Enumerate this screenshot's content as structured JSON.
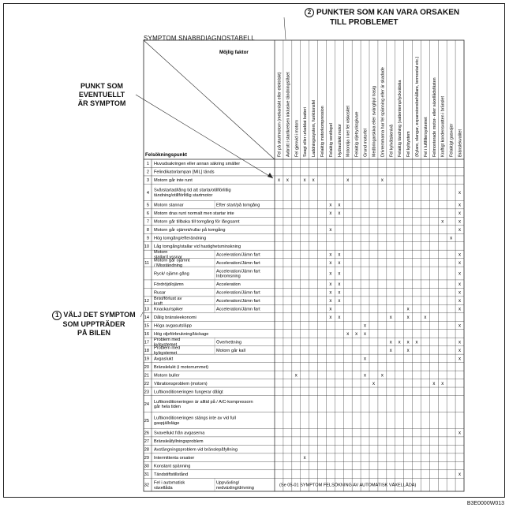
{
  "header": {
    "circle2": "2",
    "title_line1": "PUNKTER SOM KAN VARA ORSAKEN",
    "title_line2": "TILL PROBLEMET"
  },
  "table_title": "SYMPTOM SNABBDIAGNOSTABELL",
  "possible_factor": "Möjlig faktor",
  "trouble_point": "Felsökningspunkt",
  "left_label_top": [
    "PUNKT SOM",
    "EVENTUELLT",
    "ÄR SYMPTOM"
  ],
  "left_label_bottom": {
    "circle1": "1",
    "lines": [
      "VÄLJ DET SYMPTOM",
      "SOM UPPTRÄDER",
      "PÅ BILEN"
    ]
  },
  "columns": [
    "Fel på startmotorn (mekaniskt eller elektriskt)",
    "Avbrott i startkretsen inklusive tändningslåset",
    "Fel gjenvid i motorn",
    "Svagt eller urladdat batteri",
    "Laddningssystem, funktionsfel",
    "Felaktig motorkompression",
    "Felaktig ventilspel",
    "Hydrauliskt motor",
    "Motorolja i ner fel viskositet",
    "Felaktig oljetrycksgivare",
    "Grund motorfel",
    "Medbringarskiva eller svänghjul trasig",
    "Drivremmarna har fel spänning eller är skadade",
    "Fel kylvätskenivå",
    "Felaktig tändning (vattentemp/lyckvätska",
    "Fel kylsystem",
    "(Kylare, slangar, expansionsbehållare, termostat etc.)",
    "Fel i luftfiltersystemet",
    "Felmonterade motor- eller växellådsfästen",
    "Kraftigt kondensvatten i bränslet",
    "Felaktigt gasvajer",
    "Bränslekvalitet"
  ],
  "rows": [
    {
      "num": "1",
      "text": "Huvudsakringen eller annan säkring smälter",
      "marks": []
    },
    {
      "num": "2",
      "text": "Felindikatorlampan [MIL] tänds",
      "marks": []
    },
    {
      "num": "3",
      "text": "Motorn går inte runt",
      "marks": [
        0,
        1,
        3,
        4,
        8,
        12
      ]
    },
    {
      "num": "4",
      "text": "Svårstartad/lång tid att starta/otillförlitlig tändning/otillförlitlig startmotor",
      "marks": [
        21
      ]
    },
    {
      "num": "5",
      "text": "Motorn stannar",
      "sub": "Efter start/på tomgång",
      "marks": [
        6,
        7,
        21
      ]
    },
    {
      "num": "6",
      "text": "Motorn dras runt normalt men startar inte",
      "marks": [
        6,
        7,
        21
      ]
    },
    {
      "num": "7",
      "text": "Motorn går tillbaka till tomgång för långsamt",
      "marks": [
        19,
        21
      ]
    },
    {
      "num": "8",
      "text": "Motorn går ojämnt/rullar på tomgång",
      "marks": [
        6,
        21
      ]
    },
    {
      "num": "9",
      "text": "Hög tomgång/efterändning",
      "marks": [
        20
      ]
    },
    {
      "num": "10",
      "text": "Låg tomgång/stallar vid hastighetsminskning",
      "marks": []
    },
    {
      "num": "",
      "text": "Motorn stallar/Lyssnar",
      "sub": "Acceleration/Jämn fart",
      "marks": [
        6,
        7,
        21
      ]
    },
    {
      "num": "11",
      "text": "Motorn går ojämnt / Misständning",
      "sub": "Acceleration/Jämn fart",
      "marks": [
        6,
        7,
        21
      ]
    },
    {
      "num": "",
      "text": "Ryck/ ojämn gång",
      "sub": "Acceleration/Jämn fart Inbromsning",
      "marks": [
        6,
        7,
        21
      ]
    },
    {
      "num": "",
      "text": "Fördröjd/ojämn",
      "sub": "Acceleration",
      "marks": [
        6,
        7,
        21
      ]
    },
    {
      "num": "",
      "text": "Rusar",
      "sub": "Acceleration/Jämn fart",
      "marks": [
        6,
        7,
        21
      ]
    },
    {
      "num": "12",
      "text": "Brist/förlust av kraft",
      "sub": "Acceleration/Jämn fart",
      "marks": [
        6,
        7,
        21
      ]
    },
    {
      "num": "13",
      "text": "Knackar/spiker",
      "sub": "Acceleration/Jämn fart",
      "marks": [
        6,
        15,
        21
      ]
    },
    {
      "num": "14",
      "text": "Dålig bränsleekonomi",
      "marks": [
        6,
        7,
        13,
        15,
        17
      ]
    },
    {
      "num": "15",
      "text": "Höga avgasutsläpp",
      "marks": [
        10,
        21
      ]
    },
    {
      "num": "16",
      "text": "Hög oljeförbrukning/läckage",
      "marks": [
        8,
        9,
        10
      ]
    },
    {
      "num": "17",
      "text": "Problem med kylsystemet",
      "sub": "Överhettning",
      "marks": [
        13,
        14,
        15,
        16,
        21
      ]
    },
    {
      "num": "18",
      "text": "Problem med kylsystemet",
      "sub": "Motorn går kall",
      "marks": [
        13,
        15,
        21
      ]
    },
    {
      "num": "19",
      "text": "Avgaslukt",
      "marks": [
        10,
        21
      ]
    },
    {
      "num": "20",
      "text": "Bränslelukt (i motorrummet)",
      "marks": []
    },
    {
      "num": "21",
      "text": "Motorn buller",
      "marks": [
        2,
        10,
        12
      ]
    },
    {
      "num": "22",
      "text": "Vibrationsproblem (motorn)",
      "marks": [
        11,
        18,
        19
      ]
    },
    {
      "num": "23",
      "text": "Luftkonditioneringen fungerar dåligt",
      "marks": []
    },
    {
      "num": "24",
      "text": "Luftkonditioneringen är alltid på / A/C-kompressorn går hela tiden",
      "marks": []
    },
    {
      "num": "25",
      "text": "Luftkonditioneringen stängs inte av vid full gaspjällsläge",
      "marks": []
    },
    {
      "num": "26",
      "text": "Svavellukt från avgaserna",
      "marks": [
        21
      ]
    },
    {
      "num": "27",
      "text": "Bränsleåfyllningsproblem",
      "marks": []
    },
    {
      "num": "28",
      "text": "Avstängningsproblem vid bränslepåfyllning",
      "marks": []
    },
    {
      "num": "29",
      "text": "Intermittenta orsaker",
      "marks": [
        3
      ]
    },
    {
      "num": "30",
      "text": "Konstant spänning",
      "marks": []
    },
    {
      "num": "31",
      "text": "Tändstiftstillstånd",
      "marks": [
        21
      ]
    },
    {
      "num": "32",
      "text": "Fel i automatisk växellåda",
      "sub": "Uppväxling/ nedväxling/drivning",
      "marks": []
    }
  ],
  "row32_note": "(Se 05-01 SYMPTOM FELSÖKNING AV AUTOMATISK VÄXELLÅDA)",
  "mark_symbol": "x",
  "footer_code": "B3E0000W013"
}
